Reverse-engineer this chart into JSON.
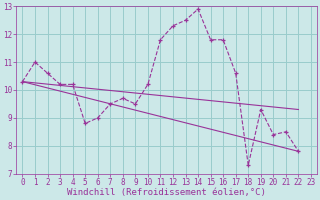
{
  "xlabel": "Windchill (Refroidissement éolien,°C)",
  "bg_color": "#cce8e8",
  "line_color": "#993399",
  "grid_color": "#99cccc",
  "xlim": [
    -0.5,
    23.5
  ],
  "ylim": [
    7,
    13
  ],
  "xticks": [
    0,
    1,
    2,
    3,
    4,
    5,
    6,
    7,
    8,
    9,
    10,
    11,
    12,
    13,
    14,
    15,
    16,
    17,
    18,
    19,
    20,
    21,
    22,
    23
  ],
  "yticks": [
    7,
    8,
    9,
    10,
    11,
    12,
    13
  ],
  "series1_x": [
    0,
    1,
    2,
    3,
    4,
    5,
    6,
    7,
    8,
    9,
    10,
    11,
    12,
    13,
    14,
    15,
    16,
    17,
    18,
    19,
    20,
    21,
    22
  ],
  "series1_y": [
    10.3,
    11.0,
    10.6,
    10.2,
    10.2,
    8.8,
    9.0,
    9.5,
    9.7,
    9.5,
    10.2,
    11.8,
    12.3,
    12.5,
    12.9,
    11.8,
    11.8,
    10.6,
    7.3,
    9.3,
    8.4,
    8.5,
    7.8
  ],
  "series2_x": [
    0,
    22
  ],
  "series2_y": [
    10.3,
    9.3
  ],
  "series3_x": [
    0,
    22
  ],
  "series3_y": [
    10.3,
    7.8
  ],
  "font_color": "#993399",
  "tick_fontsize": 5.5,
  "label_fontsize": 6.5
}
